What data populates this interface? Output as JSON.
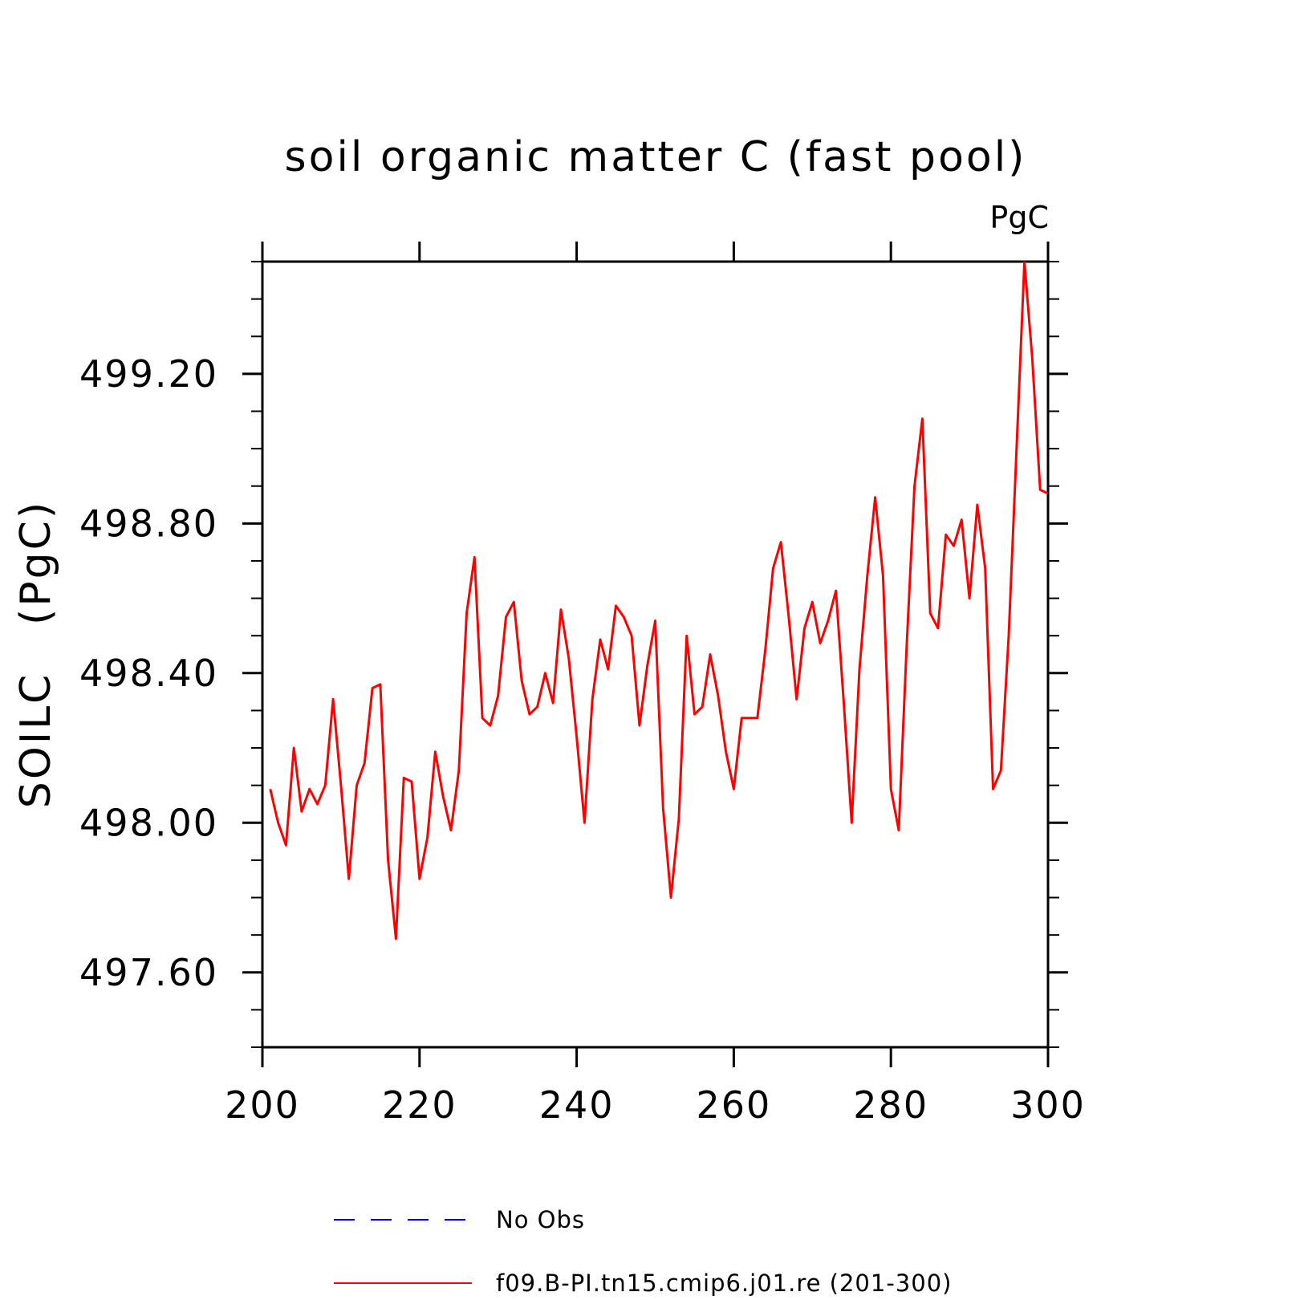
{
  "chart_data": {
    "type": "line",
    "title": "soil organic matter C (fast pool)",
    "units_label": "PgC",
    "ylabel": "SOILC   (PgC)",
    "xlabel": "",
    "xlim": [
      200,
      300
    ],
    "ylim": [
      497.4,
      499.5
    ],
    "x_ticks": [
      200,
      220,
      240,
      260,
      280,
      300
    ],
    "x_tick_labels": [
      "200",
      "220",
      "240",
      "260",
      "280",
      "300"
    ],
    "y_ticks": [
      497.6,
      498.0,
      498.4,
      498.8,
      499.2
    ],
    "y_tick_labels": [
      "497.60",
      "498.00",
      "498.40",
      "498.80",
      "499.20"
    ],
    "grid": false,
    "legend_position": "bottom",
    "legend": [
      {
        "label": "No Obs",
        "color": "#0000ff",
        "style": "dashed"
      },
      {
        "label": "f09.B-PI.tn15.cmip6.j01.re (201-300)",
        "color": "#ff0000",
        "style": "solid"
      }
    ],
    "series": [
      {
        "name": "f09.B-PI.tn15.cmip6.j01.re (201-300)",
        "color": "#ff0000",
        "x": [
          201,
          202,
          203,
          204,
          205,
          206,
          207,
          208,
          209,
          210,
          211,
          212,
          213,
          214,
          215,
          216,
          217,
          218,
          219,
          220,
          221,
          222,
          223,
          224,
          225,
          226,
          227,
          228,
          229,
          230,
          231,
          232,
          233,
          234,
          235,
          236,
          237,
          238,
          239,
          240,
          241,
          242,
          243,
          244,
          245,
          246,
          247,
          248,
          249,
          250,
          251,
          252,
          253,
          254,
          255,
          256,
          257,
          258,
          259,
          260,
          261,
          262,
          263,
          264,
          265,
          266,
          267,
          268,
          269,
          270,
          271,
          272,
          273,
          274,
          275,
          276,
          277,
          278,
          279,
          280,
          281,
          282,
          283,
          284,
          285,
          286,
          287,
          288,
          289,
          290,
          291,
          292,
          293,
          294,
          295,
          296,
          297,
          298,
          299,
          300
        ],
        "values": [
          498.09,
          498.0,
          497.94,
          498.2,
          498.03,
          498.09,
          498.05,
          498.1,
          498.33,
          498.1,
          497.85,
          498.1,
          498.16,
          498.36,
          498.37,
          497.9,
          497.69,
          498.12,
          498.11,
          497.85,
          497.96,
          498.19,
          498.07,
          497.98,
          498.14,
          498.56,
          498.71,
          498.28,
          498.26,
          498.34,
          498.55,
          498.59,
          498.38,
          498.29,
          498.31,
          498.4,
          498.32,
          498.57,
          498.44,
          498.23,
          498.0,
          498.33,
          498.49,
          498.41,
          498.58,
          498.55,
          498.5,
          498.26,
          498.42,
          498.54,
          498.04,
          497.8,
          498.01,
          498.5,
          498.29,
          498.31,
          498.45,
          498.34,
          498.19,
          498.09,
          498.28,
          498.28,
          498.28,
          498.46,
          498.68,
          498.75,
          498.55,
          498.33,
          498.52,
          498.59,
          498.48,
          498.54,
          498.62,
          498.32,
          498.0,
          498.41,
          498.66,
          498.87,
          498.66,
          498.09,
          497.98,
          498.47,
          498.9,
          499.08,
          498.56,
          498.52,
          498.77,
          498.74,
          498.81,
          498.6,
          498.85,
          498.68,
          498.09,
          498.14,
          498.5,
          499.0,
          499.5,
          499.24,
          498.89,
          498.88
        ]
      }
    ]
  }
}
